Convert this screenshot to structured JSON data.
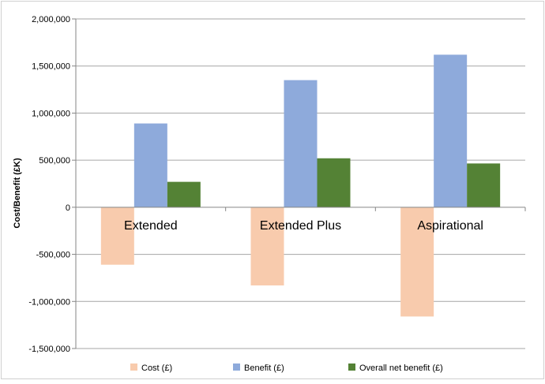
{
  "chart_data": {
    "type": "bar",
    "ylabel": "Cost/Benefit (£K)",
    "categories": [
      "Extended",
      "Extended Plus",
      "Aspirational"
    ],
    "ylim": [
      -1500000,
      2000000
    ],
    "yticks": [
      2000000,
      1500000,
      1000000,
      500000,
      0,
      -500000,
      -1000000,
      -1500000
    ],
    "ytick_labels": [
      "2,000,000",
      "1,500,000",
      "1,000,000",
      "500,000",
      "0",
      "-500,000",
      "-1,000,000",
      "-1,500,000"
    ],
    "grid": true,
    "legend_position": "bottom",
    "series": [
      {
        "name": "Cost (£)",
        "color": "#f8cbad",
        "values": [
          -610000,
          -830000,
          -1160000
        ]
      },
      {
        "name": "Benefit (£)",
        "color": "#8eaadb",
        "values": [
          890000,
          1350000,
          1620000
        ]
      },
      {
        "name": "Overall net benefit (£)",
        "color": "#548235",
        "values": [
          270000,
          520000,
          465000
        ]
      }
    ]
  }
}
